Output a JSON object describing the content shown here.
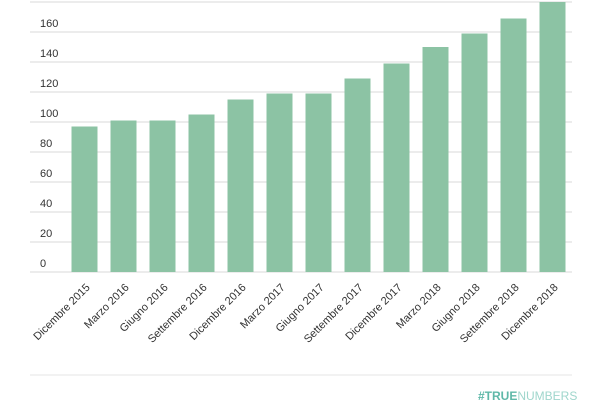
{
  "chart_data": {
    "type": "bar",
    "categories": [
      "Dicembre 2015",
      "Marzo 2016",
      "Giugno 2016",
      "Settembre 2016",
      "Dicembre 2016",
      "Marzo 2017",
      "Giugno 2017",
      "Settembre 2017",
      "Dicembre 2017",
      "Marzo 2018",
      "Giugno 2018",
      "Settembre 2018",
      "Dicembre 2018"
    ],
    "values": [
      97,
      101,
      101,
      105,
      115,
      119,
      119,
      129,
      139,
      150,
      159,
      169,
      180
    ],
    "color": "#8cc3a4",
    "ylim": [
      0,
      180
    ],
    "yticks": [
      0,
      20,
      40,
      60,
      80,
      100,
      120,
      140,
      160
    ],
    "grid": true
  },
  "footer": {
    "part1": "#TRUE",
    "part2": "NUMBERS"
  }
}
